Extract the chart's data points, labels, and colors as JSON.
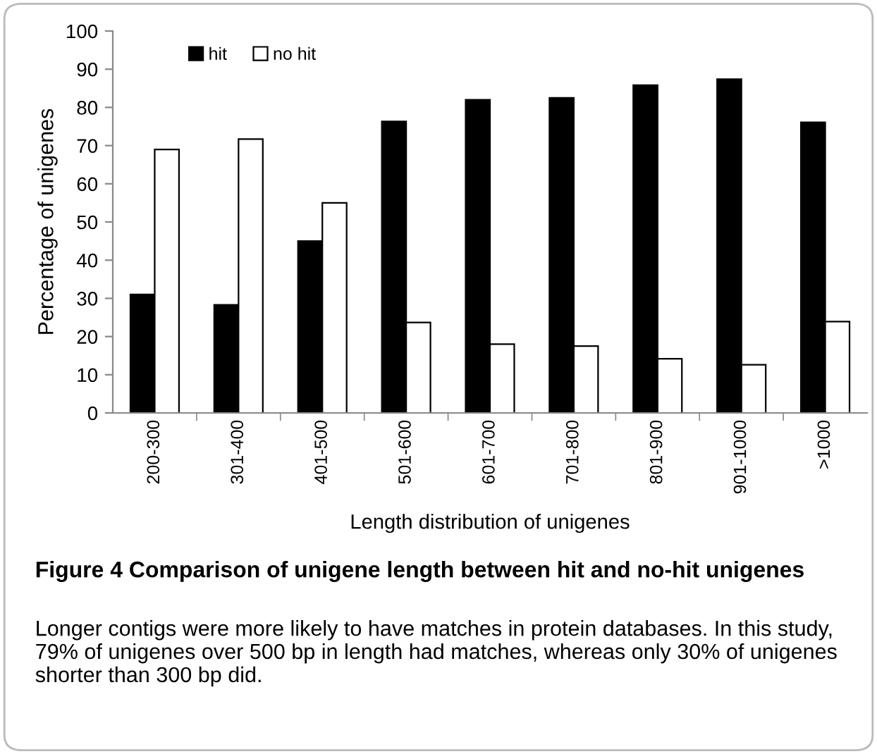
{
  "chart_data": {
    "type": "bar",
    "title": "Figure 4 Comparison of unigene length between hit and no-hit unigenes",
    "xlabel": "Length distribution of unigenes",
    "ylabel": "Percentage of unigenes",
    "categories": [
      "200-300",
      "301-400",
      "401-500",
      "501-600",
      "601-700",
      "701-800",
      "801-900",
      "901-1000",
      ">1000"
    ],
    "series": [
      {
        "name": "hit",
        "color": "#000000",
        "values": [
          31,
          28.3,
          45,
          76.3,
          82,
          82.5,
          85.8,
          87.4,
          76.1
        ]
      },
      {
        "name": "no hit",
        "color": "#ffffff",
        "values": [
          69,
          71.7,
          55,
          23.7,
          18,
          17.5,
          14.2,
          12.6,
          23.9
        ]
      }
    ],
    "ylim": [
      0,
      100
    ],
    "yticks": [
      0,
      10,
      20,
      30,
      40,
      50,
      60,
      70,
      80,
      90,
      100
    ],
    "grid": false,
    "legend": "top left",
    "annotations": [
      "Longer contigs were more likely to have matches in protein databases. In this study, 79% of unigenes over 500 bp in length had matches, whereas only 30% of unigenes shorter than 300 bp did."
    ]
  }
}
